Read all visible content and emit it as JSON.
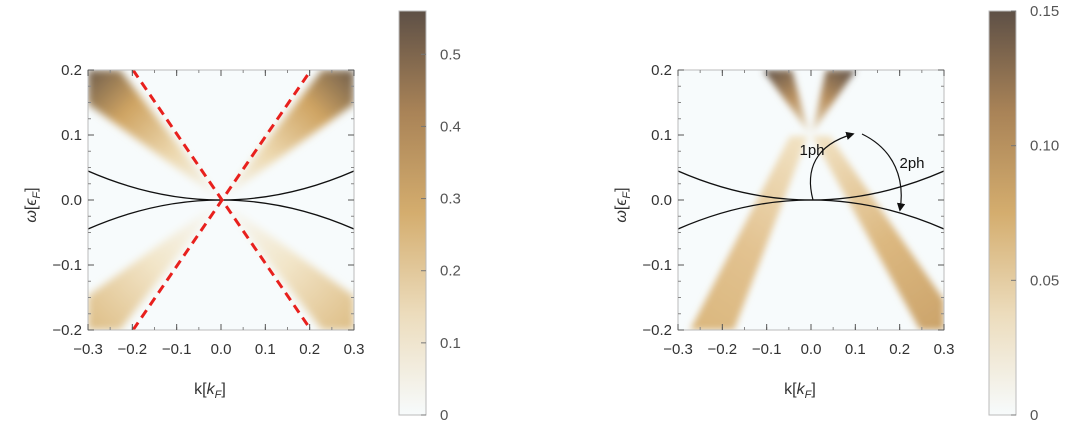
{
  "chart_data": [
    {
      "type": "heatmap",
      "xlabel": "k[k_F]",
      "ylabel": "ω[ε_F]",
      "xlim": [
        -0.3,
        0.3
      ],
      "ylim": [
        -0.2,
        0.2
      ],
      "xticks": [
        -0.3,
        -0.2,
        -0.1,
        0.0,
        0.1,
        0.2,
        0.3
      ],
      "xtick_labels": [
        "-0.3",
        "-0.2",
        "-0.1",
        "0.0",
        "0.1",
        "0.2",
        "0.3"
      ],
      "yticks": [
        -0.2,
        -0.1,
        0.0,
        0.1,
        0.2
      ],
      "ytick_labels": [
        "-0.2",
        "-0.1",
        "0.0",
        "0.1",
        "0.2"
      ],
      "colorbar": {
        "range": [
          0,
          0.56
        ],
        "ticks": [
          0,
          0.1,
          0.2,
          0.3,
          0.4,
          0.5
        ],
        "tick_labels": [
          "0",
          "0.1",
          "0.2",
          "0.3",
          "0.4",
          "0.5"
        ],
        "low_color": "#f7fbfc",
        "mid_color": "#c9a05a",
        "high_color": "#5e5046"
      },
      "bands": {
        "type": "cone",
        "apex": [
          0.0,
          0.0
        ],
        "slope": 1.0
      },
      "curves": [
        {
          "style": "solid",
          "color": "#111111",
          "function": "0.5*k^2"
        },
        {
          "style": "solid",
          "color": "#111111",
          "function": "-0.5*k^2"
        }
      ],
      "dashed_lines": [
        {
          "color": "#e8201d",
          "points": [
            [
              -0.2,
              0.2
            ],
            [
              0.2,
              -0.2
            ]
          ]
        },
        {
          "color": "#e8201d",
          "points": [
            [
              -0.2,
              -0.2
            ],
            [
              0.2,
              0.2
            ]
          ]
        }
      ]
    },
    {
      "type": "heatmap",
      "xlabel": "k[k_F]",
      "ylabel": "ω[ε_F]",
      "xlim": [
        -0.3,
        0.3
      ],
      "ylim": [
        -0.2,
        0.2
      ],
      "xticks": [
        -0.3,
        -0.2,
        -0.1,
        0.0,
        0.1,
        0.2,
        0.3
      ],
      "xtick_labels": [
        "-0.3",
        "-0.2",
        "-0.1",
        "0.0",
        "0.1",
        "0.2",
        "0.3"
      ],
      "yticks": [
        -0.2,
        -0.1,
        0.0,
        0.1,
        0.2
      ],
      "ytick_labels": [
        "-0.2",
        "-0.1",
        "0.0",
        "0.1",
        "0.2"
      ],
      "colorbar": {
        "range": [
          0,
          0.15
        ],
        "ticks": [
          0,
          0.05,
          0.1,
          0.15
        ],
        "tick_labels": [
          "0",
          "0.05",
          "0.10",
          "0.15"
        ],
        "low_color": "#f7fbfc",
        "mid_color": "#c9a05a",
        "high_color": "#5e5046"
      },
      "bands": {
        "type": "cone",
        "apex": [
          0.1,
          0.1
        ],
        "slope": 1.0
      },
      "curves": [
        {
          "style": "solid",
          "color": "#111111",
          "function": "0.5*k^2"
        },
        {
          "style": "solid",
          "color": "#111111",
          "function": "-0.5*k^2"
        }
      ],
      "annotations": [
        {
          "text": "1ph",
          "at": [
            0.0,
            0.15
          ]
        },
        {
          "text": "2ph",
          "at": [
            0.225,
            0.095
          ]
        }
      ],
      "arrows": [
        {
          "from": [
            0.0,
            0.0
          ],
          "to": [
            0.1,
            0.1
          ]
        },
        {
          "from": [
            0.1,
            0.1
          ],
          "to": [
            0.2,
            -0.015
          ]
        }
      ]
    }
  ]
}
